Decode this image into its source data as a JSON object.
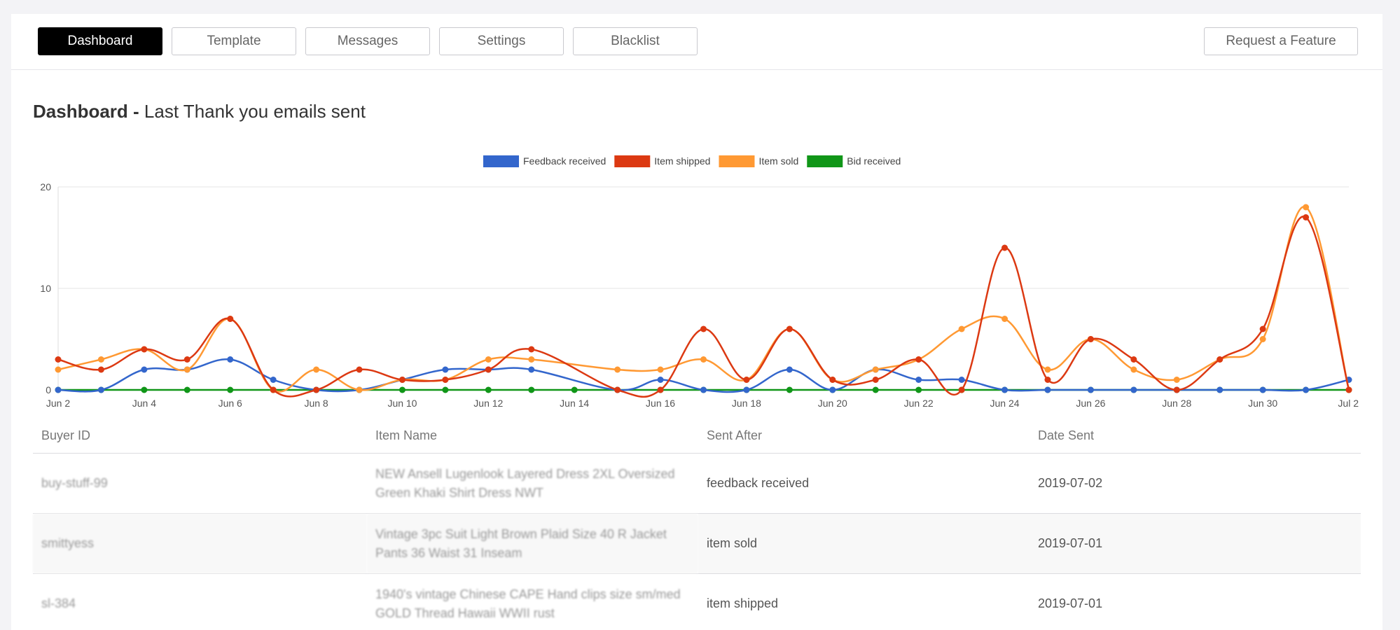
{
  "nav": {
    "tabs": [
      {
        "label": "Dashboard",
        "active": true
      },
      {
        "label": "Template",
        "active": false
      },
      {
        "label": "Messages",
        "active": false
      },
      {
        "label": "Settings",
        "active": false
      },
      {
        "label": "Blacklist",
        "active": false
      }
    ],
    "request_feature": "Request a Feature"
  },
  "heading": {
    "bold": "Dashboard -",
    "rest": " Last Thank you emails sent"
  },
  "chart_data": {
    "type": "line",
    "categories": [
      "Jun 2",
      "Jun 3",
      "Jun 4",
      "Jun 5",
      "Jun 6",
      "Jun 7",
      "Jun 8",
      "Jun 9",
      "Jun 10",
      "Jun 11",
      "Jun 12",
      "Jun 13",
      "Jun 14",
      "Jun 15",
      "Jun 16",
      "Jun 17",
      "Jun 18",
      "Jun 19",
      "Jun 20",
      "Jun 21",
      "Jun 22",
      "Jun 23",
      "Jun 24",
      "Jun 25",
      "Jun 26",
      "Jun 27",
      "Jun 28",
      "Jun 29",
      "Jun 30",
      "Jul 1",
      "Jul 2"
    ],
    "tick_labels": [
      "Jun 2",
      "Jun 4",
      "Jun 6",
      "Jun 8",
      "Jun 10",
      "Jun 12",
      "Jun 14",
      "Jun 16",
      "Jun 18",
      "Jun 20",
      "Jun 22",
      "Jun 24",
      "Jun 26",
      "Jun 28",
      "Jun 30",
      "Jul 2"
    ],
    "ylim": [
      0,
      20
    ],
    "yticks": [
      0,
      10,
      20
    ],
    "grid": true,
    "legend_position": "top-center",
    "series": [
      {
        "name": "Feedback received",
        "color": "#3366cc",
        "values": [
          0,
          0,
          2,
          2,
          3,
          1,
          0,
          0,
          1,
          2,
          2,
          2,
          null,
          0,
          1,
          0,
          0,
          2,
          0,
          2,
          1,
          1,
          0,
          0,
          0,
          0,
          0,
          0,
          0,
          0,
          1
        ]
      },
      {
        "name": "Item shipped",
        "color": "#dc3912",
        "values": [
          3,
          2,
          4,
          3,
          7,
          0,
          0,
          2,
          1,
          1,
          2,
          4,
          null,
          0,
          0,
          6,
          1,
          6,
          1,
          1,
          3,
          0,
          14,
          1,
          5,
          3,
          0,
          3,
          6,
          17,
          0
        ]
      },
      {
        "name": "Item sold",
        "color": "#ff9933",
        "values": [
          2,
          3,
          4,
          2,
          7,
          0,
          2,
          0,
          1,
          1,
          3,
          3,
          null,
          2,
          2,
          3,
          1,
          6,
          1,
          2,
          3,
          6,
          7,
          2,
          5,
          2,
          1,
          3,
          5,
          18,
          0
        ]
      },
      {
        "name": "Bid received",
        "color": "#109618",
        "values": [
          0,
          0,
          0,
          0,
          0,
          0,
          0,
          0,
          0,
          0,
          0,
          0,
          0,
          0,
          0,
          0,
          0,
          0,
          0,
          0,
          0,
          0,
          0,
          0,
          0,
          0,
          0,
          0,
          0,
          0,
          0
        ]
      }
    ]
  },
  "table": {
    "headers": [
      "Buyer ID",
      "Item Name",
      "Sent After",
      "Date Sent"
    ],
    "rows": [
      {
        "buyer": "buy-stuff-99",
        "item": "NEW Ansell Lugenlook Layered Dress 2XL Oversized Green Khaki Shirt Dress NWT",
        "sent_after": "feedback received",
        "date": "2019-07-02"
      },
      {
        "buyer": "smittyess",
        "item": "Vintage 3pc Suit Light Brown Plaid Size 40 R Jacket Pants 36 Waist 31 Inseam",
        "sent_after": "item sold",
        "date": "2019-07-01"
      },
      {
        "buyer": "sl-384",
        "item": "1940's vintage Chinese CAPE Hand clips size sm/med GOLD Thread Hawaii WWII rust",
        "sent_after": "item shipped",
        "date": "2019-07-01"
      }
    ]
  }
}
